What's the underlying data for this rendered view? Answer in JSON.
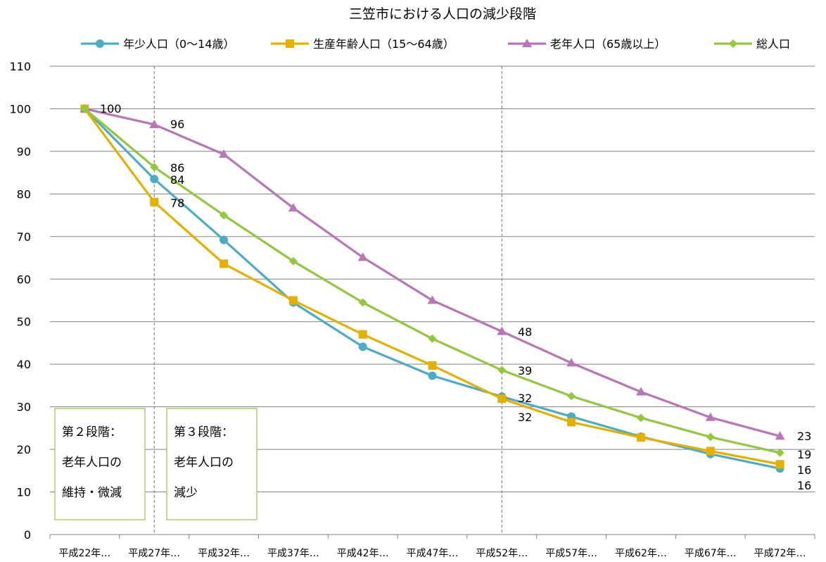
{
  "chart_data": {
    "type": "line",
    "title": "三笠市における人口の減少段階",
    "categories": [
      "平成22年…",
      "平成27年…",
      "平成32年…",
      "平成37年…",
      "平成42年…",
      "平成47年…",
      "平成52年…",
      "平成57年…",
      "平成62年…",
      "平成67年…",
      "平成72年…"
    ],
    "ylim": [
      0,
      110
    ],
    "yticks": [
      0,
      10,
      20,
      30,
      40,
      50,
      60,
      70,
      80,
      90,
      100,
      110
    ],
    "grid": true,
    "legend": "top",
    "series": [
      {
        "name": "年少人口（0～14歳）",
        "color": "#4BACC6",
        "marker": "circle",
        "values": [
          100,
          83.5,
          69.2,
          54.5,
          44.1,
          37.3,
          32.4,
          27.7,
          23.0,
          18.9,
          15.5
        ]
      },
      {
        "name": "生産年齢人口（15～64歳）",
        "color": "#E6B000",
        "marker": "square",
        "values": [
          100,
          78.1,
          63.6,
          55.0,
          47.0,
          39.7,
          31.9,
          26.4,
          22.8,
          19.6,
          16.5
        ]
      },
      {
        "name": "老年人口（65歳以上）",
        "color": "#B875B8",
        "marker": "triangle",
        "values": [
          100,
          96.3,
          89.3,
          76.7,
          65.1,
          55.0,
          47.7,
          40.3,
          33.5,
          27.5,
          23.1
        ]
      },
      {
        "name": "総人口",
        "color": "#92C83E",
        "marker": "diamond",
        "values": [
          100,
          86.3,
          75.0,
          64.2,
          54.5,
          46.0,
          38.6,
          32.5,
          27.4,
          22.9,
          19.2
        ]
      }
    ],
    "data_labels": [
      {
        "text": "100",
        "series": 0,
        "index": 0
      },
      {
        "text": "96",
        "series": 2,
        "index": 1
      },
      {
        "text": "86",
        "series": 3,
        "index": 1
      },
      {
        "text": "84",
        "series": 0,
        "index": 1
      },
      {
        "text": "78",
        "series": 1,
        "index": 1
      },
      {
        "text": "48",
        "series": 2,
        "index": 6
      },
      {
        "text": "39",
        "series": 3,
        "index": 6
      },
      {
        "text": "32",
        "series": 0,
        "index": 6
      },
      {
        "text": "32",
        "series": 1,
        "index": 6
      },
      {
        "text": "23",
        "series": 2,
        "index": 10
      },
      {
        "text": "19",
        "series": 3,
        "index": 10
      },
      {
        "text": "16",
        "series": 1,
        "index": 10
      },
      {
        "text": "16",
        "series": 0,
        "index": 10
      }
    ],
    "stage_dividers": [
      1,
      6
    ],
    "annotations": [
      {
        "lines": [
          "第２段階：",
          "老年人口の",
          "維持・微減"
        ]
      },
      {
        "lines": [
          "第３段階：",
          "老年人口の",
          "減少"
        ]
      }
    ]
  }
}
